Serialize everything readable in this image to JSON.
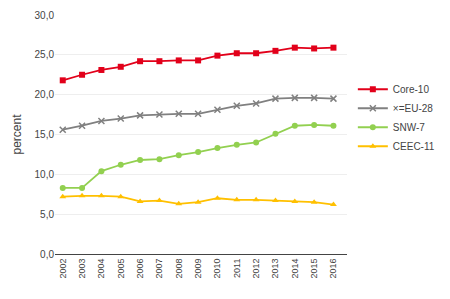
{
  "chart_data": {
    "type": "line",
    "x": [
      2002,
      2003,
      2004,
      2005,
      2006,
      2007,
      2008,
      2009,
      2010,
      2011,
      2012,
      2013,
      2014,
      2015,
      2016
    ],
    "series": [
      {
        "name": "Core-10",
        "color": "#e2001a",
        "marker": "square",
        "values": [
          21.8,
          22.5,
          23.1,
          23.5,
          24.2,
          24.2,
          24.3,
          24.3,
          24.9,
          25.2,
          25.2,
          25.5,
          25.9,
          25.8,
          25.9
        ]
      },
      {
        "name": "×=EU-28",
        "color": "#808080",
        "marker": "x",
        "values": [
          15.6,
          16.1,
          16.7,
          17.0,
          17.4,
          17.5,
          17.6,
          17.6,
          18.1,
          18.6,
          18.9,
          19.5,
          19.6,
          19.6,
          19.5
        ]
      },
      {
        "name": "SNW-7",
        "color": "#92d050",
        "marker": "circle",
        "values": [
          8.3,
          8.3,
          10.4,
          11.2,
          11.8,
          11.9,
          12.4,
          12.8,
          13.3,
          13.7,
          14.0,
          15.1,
          16.1,
          16.2,
          16.1
        ]
      },
      {
        "name": "CEEC-11",
        "color": "#ffc000",
        "marker": "triangle",
        "values": [
          7.2,
          7.3,
          7.3,
          7.2,
          6.6,
          6.7,
          6.3,
          6.5,
          7.0,
          6.8,
          6.8,
          6.7,
          6.6,
          6.5,
          6.2
        ]
      }
    ],
    "ylabel": "percent",
    "xlim": [
      2001.6,
      2016.7
    ],
    "xticks": [
      2002,
      2003,
      2004,
      2005,
      2006,
      2007,
      2008,
      2009,
      2010,
      2011,
      2012,
      2013,
      2014,
      2015,
      2016
    ],
    "ylim": [
      0.0,
      30.0
    ],
    "yticks": [
      {
        "value": 0.0,
        "label": "0,0"
      },
      {
        "value": 5.0,
        "label": "5,0"
      },
      {
        "value": 10.0,
        "label": "10,0"
      },
      {
        "value": 15.0,
        "label": "15,0"
      },
      {
        "value": 20.0,
        "label": "20,0"
      },
      {
        "value": 25.0,
        "label": "25,0"
      },
      {
        "value": 30.0,
        "label": "30,0"
      }
    ],
    "grid": "y",
    "legend": "right"
  }
}
